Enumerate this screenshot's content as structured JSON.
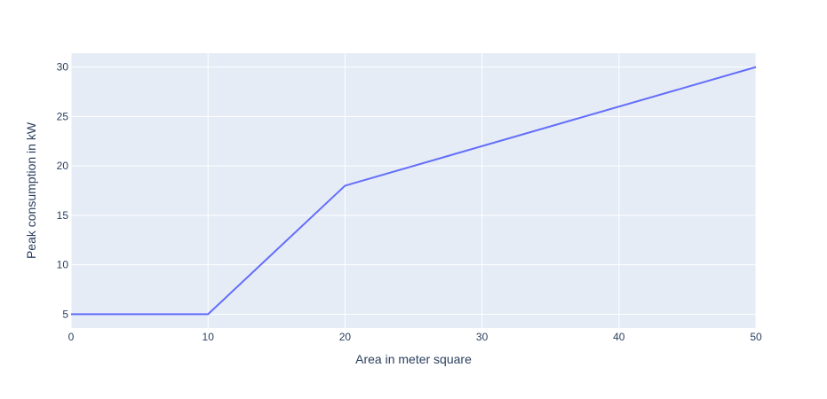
{
  "chart_data": {
    "type": "line",
    "title": "",
    "xlabel": "Area in meter square",
    "ylabel": "Peak consumption in kW",
    "xlim": [
      0,
      50
    ],
    "ylim": [
      3.6,
      31.4
    ],
    "xticks": [
      0,
      10,
      20,
      30,
      40,
      50
    ],
    "yticks": [
      5,
      10,
      15,
      20,
      25,
      30
    ],
    "grid": true,
    "legend": "none",
    "series": [
      {
        "x": [
          0,
          10,
          20,
          50
        ],
        "y": [
          5,
          5,
          18,
          30
        ],
        "color": "#636efa"
      }
    ],
    "colors": {
      "plot_background": "#e5ecf6",
      "grid": "#ffffff",
      "text": "#2a3f5f"
    }
  }
}
